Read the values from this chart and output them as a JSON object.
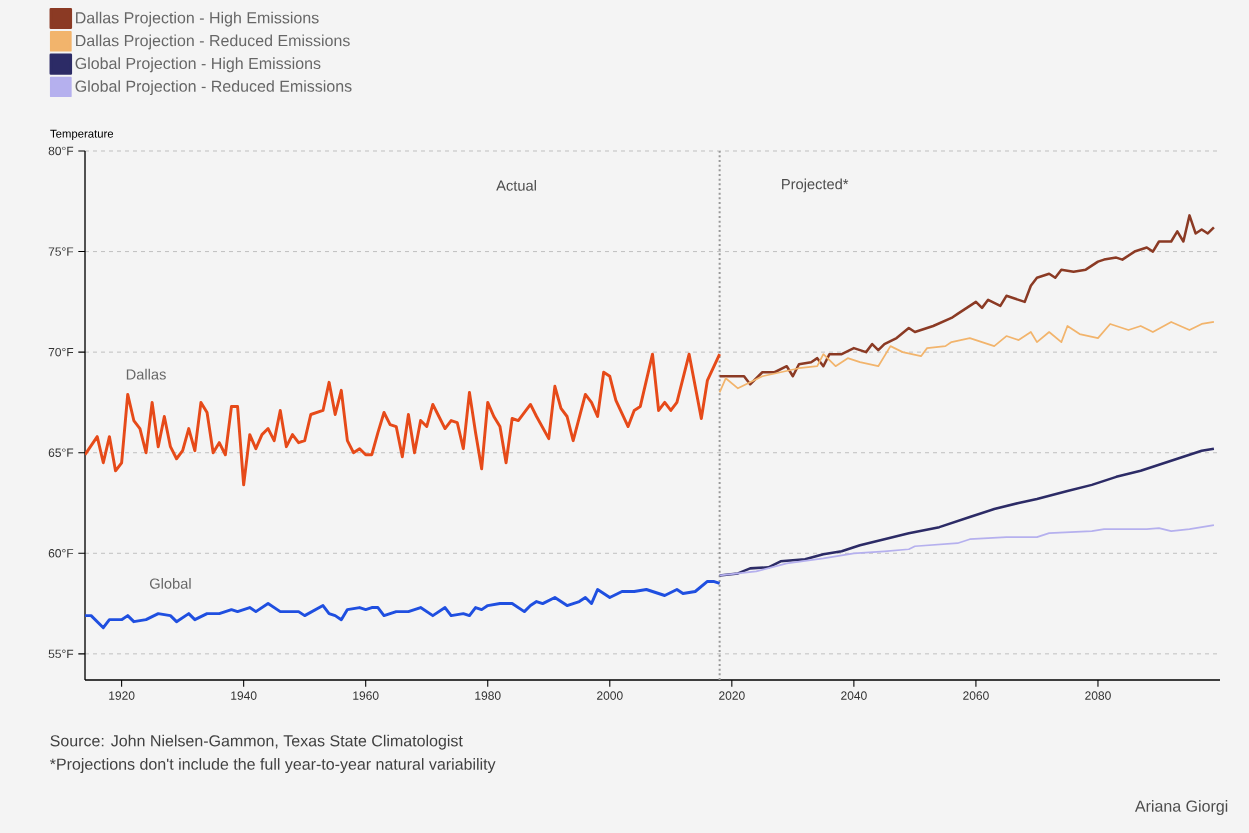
{
  "chart_data": {
    "type": "line",
    "ylabel": "Temperature",
    "xlim": [
      1914,
      2100
    ],
    "ylim": [
      53.7,
      80
    ],
    "xticks": [
      1920,
      1940,
      1960,
      1980,
      2000,
      2020,
      2040,
      2060,
      2080
    ],
    "yticks": [
      {
        "value": 55,
        "label": "55°F"
      },
      {
        "value": 60,
        "label": "60°F"
      },
      {
        "value": 65,
        "label": "65°F"
      },
      {
        "value": 70,
        "label": "70°F"
      },
      {
        "value": 75,
        "label": "75°F"
      },
      {
        "value": 80,
        "label": "80°F"
      }
    ],
    "grid": "y",
    "legend": "top left",
    "ref_lines": [
      {
        "axis": "x",
        "value": 2018,
        "color": "#999999",
        "line_style": "dotted"
      }
    ],
    "annotations": [
      "Actual",
      "Projected*",
      "Source: John Nielsen-Gammon, Texas State Climatologist",
      "*Projections don't include the full year-to-year natural variability",
      "Ariana Giorgi"
    ],
    "series": [
      {
        "name": "Dallas Projection - High Emissions",
        "color": "#8b3a24",
        "x": [
          2018,
          2021,
          2022,
          2023,
          2025,
          2027,
          2029,
          2030,
          2031,
          2033,
          2034,
          2035,
          2036,
          2038,
          2040,
          2042,
          2043,
          2044,
          2045,
          2047,
          2049,
          2050,
          2053,
          2056,
          2057,
          2060,
          2061,
          2062,
          2064,
          2065,
          2068,
          2069,
          2070,
          2072,
          2073,
          2074,
          2076,
          2078,
          2080,
          2081,
          2083,
          2084,
          2086,
          2088,
          2089,
          2090,
          2092,
          2093,
          2094,
          2095,
          2096,
          2097,
          2098,
          2099
        ],
        "values": [
          68.8,
          68.8,
          68.8,
          68.4,
          69.0,
          69.0,
          69.3,
          68.8,
          69.4,
          69.5,
          69.7,
          69.3,
          69.9,
          69.9,
          70.2,
          70.0,
          70.4,
          70.1,
          70.4,
          70.7,
          71.2,
          71.0,
          71.3,
          71.7,
          71.9,
          72.5,
          72.2,
          72.6,
          72.3,
          72.8,
          72.5,
          73.3,
          73.7,
          73.9,
          73.7,
          74.1,
          74.0,
          74.1,
          74.5,
          74.6,
          74.7,
          74.6,
          75.0,
          75.2,
          75.0,
          75.5,
          75.5,
          76.0,
          75.5,
          76.8,
          75.9,
          76.1,
          75.9,
          76.2
        ]
      },
      {
        "name": "Dallas Projection - Reduced Emissions",
        "color": "#f2b46c",
        "x": [
          2018,
          2019,
          2021,
          2023,
          2025,
          2028,
          2031,
          2034,
          2035,
          2037,
          2039,
          2041,
          2044,
          2046,
          2048,
          2051,
          2052,
          2055,
          2056,
          2059,
          2061,
          2063,
          2065,
          2067,
          2069,
          2070,
          2072,
          2074,
          2075,
          2077,
          2080,
          2082,
          2085,
          2087,
          2089,
          2092,
          2095,
          2097,
          2099
        ],
        "values": [
          68.0,
          68.7,
          68.2,
          68.5,
          68.8,
          69.0,
          69.2,
          69.3,
          69.9,
          69.3,
          69.7,
          69.5,
          69.3,
          70.3,
          70.0,
          69.8,
          70.2,
          70.3,
          70.5,
          70.7,
          70.5,
          70.3,
          70.8,
          70.6,
          71.0,
          70.5,
          71.0,
          70.5,
          71.3,
          70.9,
          70.7,
          71.4,
          71.1,
          71.3,
          71.0,
          71.5,
          71.1,
          71.4,
          71.5
        ]
      },
      {
        "name": "Global Projection - High Emissions",
        "color": "#2c2b66",
        "x": [
          2018,
          2021,
          2023,
          2026,
          2028,
          2032,
          2035,
          2038,
          2041,
          2045,
          2049,
          2054,
          2059,
          2063,
          2067,
          2070,
          2075,
          2079,
          2083,
          2087,
          2090,
          2093,
          2097,
          2099
        ],
        "values": [
          58.9,
          59.0,
          59.25,
          59.3,
          59.6,
          59.7,
          59.95,
          60.1,
          60.4,
          60.7,
          61.0,
          61.3,
          61.8,
          62.2,
          62.5,
          62.7,
          63.1,
          63.4,
          63.8,
          64.1,
          64.4,
          64.7,
          65.1,
          65.2
        ]
      },
      {
        "name": "Global Projection - Reduced Emissions",
        "color": "#b5b0ee",
        "x": [
          2018,
          2024,
          2029,
          2035,
          2040,
          2045,
          2049,
          2050,
          2057,
          2059,
          2065,
          2070,
          2072,
          2079,
          2081,
          2088,
          2090,
          2092,
          2095,
          2099
        ],
        "values": [
          58.9,
          59.1,
          59.5,
          59.75,
          60.0,
          60.1,
          60.2,
          60.35,
          60.5,
          60.7,
          60.8,
          60.8,
          61.0,
          61.1,
          61.2,
          61.2,
          61.25,
          61.1,
          61.2,
          61.4
        ]
      },
      {
        "name": "Dallas",
        "color": "#e64a19",
        "x": [
          1914,
          1916,
          1917,
          1918,
          1919,
          1920,
          1921,
          1922,
          1923,
          1924,
          1925,
          1926,
          1927,
          1928,
          1929,
          1930,
          1931,
          1932,
          1933,
          1934,
          1935,
          1936,
          1937,
          1938,
          1939,
          1940,
          1941,
          1942,
          1943,
          1944,
          1945,
          1946,
          1947,
          1948,
          1949,
          1950,
          1951,
          1953,
          1954,
          1955,
          1956,
          1957,
          1958,
          1959,
          1960,
          1961,
          1962,
          1963,
          1964,
          1965,
          1966,
          1967,
          1968,
          1969,
          1970,
          1971,
          1972,
          1973,
          1974,
          1975,
          1976,
          1977,
          1978,
          1979,
          1980,
          1981,
          1982,
          1983,
          1984,
          1985,
          1987,
          1988,
          1990,
          1991,
          1992,
          1993,
          1994,
          1996,
          1997,
          1998,
          1999,
          2000,
          2001,
          2003,
          2004,
          2005,
          2007,
          2008,
          2009,
          2010,
          2011,
          2013,
          2015,
          2016,
          2018
        ],
        "values": [
          64.9,
          65.8,
          64.5,
          65.8,
          64.1,
          64.5,
          67.9,
          66.6,
          66.2,
          65.0,
          67.5,
          65.3,
          66.8,
          65.3,
          64.7,
          65.1,
          66.2,
          65.1,
          67.5,
          67.0,
          65.0,
          65.5,
          64.9,
          67.3,
          67.3,
          63.4,
          65.9,
          65.2,
          65.9,
          66.2,
          65.6,
          67.1,
          65.3,
          65.9,
          65.5,
          65.6,
          66.9,
          67.1,
          68.5,
          66.9,
          68.1,
          65.6,
          65.0,
          65.2,
          64.9,
          64.9,
          66.0,
          67.0,
          66.4,
          66.3,
          64.8,
          66.9,
          65.0,
          66.6,
          66.3,
          67.4,
          66.8,
          66.2,
          66.6,
          66.5,
          65.2,
          68.0,
          66.0,
          64.2,
          67.5,
          66.8,
          66.3,
          64.5,
          66.7,
          66.6,
          67.4,
          66.8,
          65.7,
          68.3,
          67.2,
          66.8,
          65.6,
          67.9,
          67.5,
          66.8,
          69.0,
          68.8,
          67.6,
          66.3,
          67.1,
          67.3,
          69.9,
          67.1,
          67.5,
          67.1,
          67.5,
          69.9,
          66.7,
          68.6,
          69.9
        ]
      },
      {
        "name": "Global",
        "color": "#1f4fe0",
        "x": [
          1914,
          1915,
          1917,
          1918,
          1920,
          1921,
          1922,
          1924,
          1926,
          1928,
          1929,
          1931,
          1932,
          1934,
          1936,
          1938,
          1939,
          1941,
          1942,
          1944,
          1946,
          1949,
          1950,
          1953,
          1954,
          1955,
          1956,
          1957,
          1959,
          1960,
          1961,
          1962,
          1963,
          1965,
          1967,
          1969,
          1971,
          1973,
          1974,
          1976,
          1977,
          1978,
          1979,
          1980,
          1982,
          1984,
          1986,
          1987,
          1988,
          1989,
          1991,
          1993,
          1995,
          1996,
          1997,
          1998,
          2000,
          2002,
          2004,
          2006,
          2007,
          2009,
          2011,
          2012,
          2014,
          2016,
          2017,
          2018
        ],
        "values": [
          56.9,
          56.9,
          56.3,
          56.7,
          56.7,
          56.9,
          56.6,
          56.7,
          57.0,
          56.9,
          56.6,
          57.0,
          56.7,
          57.0,
          57.0,
          57.2,
          57.1,
          57.3,
          57.1,
          57.5,
          57.1,
          57.1,
          56.9,
          57.4,
          57.0,
          56.9,
          56.7,
          57.2,
          57.3,
          57.2,
          57.3,
          57.3,
          56.9,
          57.1,
          57.1,
          57.3,
          56.9,
          57.3,
          56.9,
          57.0,
          56.9,
          57.3,
          57.2,
          57.4,
          57.5,
          57.5,
          57.1,
          57.4,
          57.6,
          57.5,
          57.8,
          57.4,
          57.6,
          57.8,
          57.5,
          58.2,
          57.8,
          58.1,
          58.1,
          58.2,
          58.1,
          57.9,
          58.2,
          58.0,
          58.1,
          58.6,
          58.6,
          58.5
        ]
      }
    ]
  }
}
